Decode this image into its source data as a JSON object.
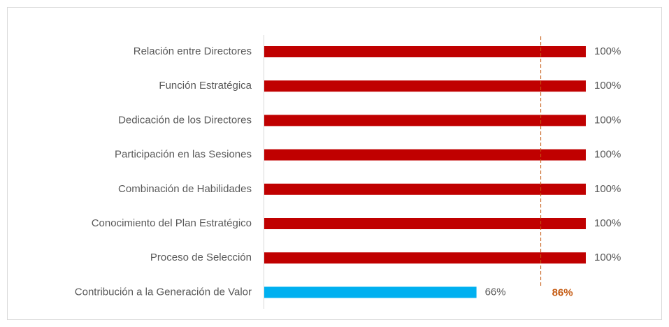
{
  "chart_data": {
    "type": "bar",
    "orientation": "horizontal",
    "categories": [
      "Relación entre Directores",
      "Función Estratégica",
      "Dedicación de los Directores",
      "Participación en las Sesiones",
      "Combinación de Habilidades",
      "Conocimiento del Plan Estratégico",
      "Proceso de Selección",
      "Contribución a la Generación de Valor"
    ],
    "values": [
      100,
      100,
      100,
      100,
      100,
      100,
      100,
      66
    ],
    "value_labels": [
      "100%",
      "100%",
      "100%",
      "100%",
      "100%",
      "100%",
      "100%",
      "66%"
    ],
    "colors": [
      "#c00000",
      "#c00000",
      "#c00000",
      "#c00000",
      "#c00000",
      "#c00000",
      "#c00000",
      "#00b0f0"
    ],
    "xlim": [
      0,
      100
    ],
    "reference_line": {
      "value": 86,
      "label": "86%",
      "color": "#c55a11"
    }
  }
}
